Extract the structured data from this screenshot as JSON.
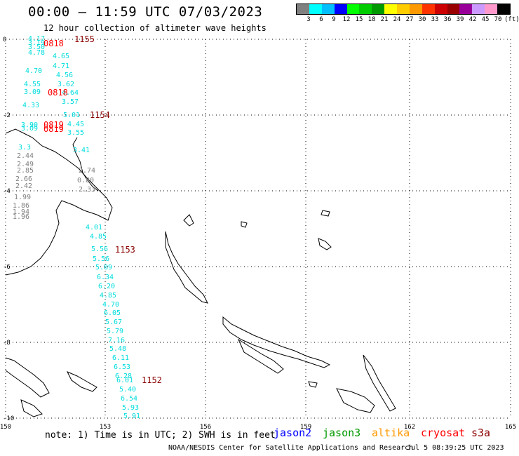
{
  "header": {
    "title": "00:00 — 11:59 UTC 07/03/2023",
    "subtitle": "12 hour collection of altimeter wave heights"
  },
  "color_scale": {
    "labels": [
      "3",
      "6",
      "9",
      "12",
      "15",
      "18",
      "21",
      "24",
      "27",
      "30",
      "33",
      "36",
      "39",
      "42",
      "45",
      "70"
    ],
    "unit": "(ft)",
    "colors": [
      "#808080",
      "#00ffff",
      "#00bfff",
      "#0000ff",
      "#00ff00",
      "#00cc00",
      "#009900",
      "#ffff00",
      "#ffcc00",
      "#ff9900",
      "#ff3300",
      "#cc0000",
      "#990000",
      "#990099",
      "#cc99ff",
      "#ff99cc",
      "#000000"
    ]
  },
  "axes": {
    "x_ticks": [
      "150",
      "153",
      "156",
      "159",
      "162",
      "165"
    ],
    "y_ticks": [
      "0",
      "-2",
      "-4",
      "-6",
      "-8",
      "-10"
    ]
  },
  "passes": [
    {
      "label": "1155",
      "color": "#8b0000"
    },
    {
      "label": "0818",
      "color": "#ff0000"
    },
    {
      "label": "0818",
      "color": "#ff0000"
    },
    {
      "label": "1154",
      "color": "#8b0000"
    },
    {
      "label": "0819",
      "color": "#ff0000"
    },
    {
      "label": "0819",
      "color": "#ff0000"
    },
    {
      "label": "1153",
      "color": "#8b0000"
    },
    {
      "label": "1152",
      "color": "#8b0000"
    }
  ],
  "readings": [
    {
      "v": "4.17",
      "c": "#00dddd"
    },
    {
      "v": "3.19",
      "c": "#00dddd"
    },
    {
      "v": "3.50",
      "c": "#00dddd"
    },
    {
      "v": "4.78",
      "c": "#00dddd"
    },
    {
      "v": "4.65",
      "c": "#00dddd"
    },
    {
      "v": "4.71",
      "c": "#00dddd"
    },
    {
      "v": "4.70",
      "c": "#00dddd"
    },
    {
      "v": "4.56",
      "c": "#00dddd"
    },
    {
      "v": "4.55",
      "c": "#00dddd"
    },
    {
      "v": "3.62",
      "c": "#00dddd"
    },
    {
      "v": "3.09",
      "c": "#00dddd"
    },
    {
      "v": "4.64",
      "c": "#00dddd"
    },
    {
      "v": "3.57",
      "c": "#00dddd"
    },
    {
      "v": "4.33",
      "c": "#00dddd"
    },
    {
      "v": "5.01",
      "c": "#00dddd"
    },
    {
      "v": "4.45",
      "c": "#00dddd"
    },
    {
      "v": "3.90",
      "c": "#00dddd"
    },
    {
      "v": "3.55",
      "c": "#00dddd"
    },
    {
      "v": "3.09",
      "c": "#00dddd"
    },
    {
      "v": "3.3",
      "c": "#00dddd"
    },
    {
      "v": "3.41",
      "c": "#00dddd"
    },
    {
      "v": "2.44",
      "c": "#808080"
    },
    {
      "v": "2.49",
      "c": "#808080"
    },
    {
      "v": "2.85",
      "c": "#808080"
    },
    {
      "v": "2.74",
      "c": "#808080"
    },
    {
      "v": "2.66",
      "c": "#808080"
    },
    {
      "v": "0.80",
      "c": "#808080"
    },
    {
      "v": "2.42",
      "c": "#808080"
    },
    {
      "v": "2.33",
      "c": "#808080"
    },
    {
      "v": "1.99",
      "c": "#808080"
    },
    {
      "v": "1.86",
      "c": "#808080"
    },
    {
      "v": "1.94",
      "c": "#808080"
    },
    {
      "v": "1.96",
      "c": "#808080"
    },
    {
      "v": "4.01",
      "c": "#00dddd"
    },
    {
      "v": "4.85",
      "c": "#00dddd"
    },
    {
      "v": "5.56",
      "c": "#00dddd"
    },
    {
      "v": "5.56",
      "c": "#00dddd"
    },
    {
      "v": "5.89",
      "c": "#00dddd"
    },
    {
      "v": "6.34",
      "c": "#00dddd"
    },
    {
      "v": "6.20",
      "c": "#00dddd"
    },
    {
      "v": "4.85",
      "c": "#00dddd"
    },
    {
      "v": "4.70",
      "c": "#00dddd"
    },
    {
      "v": "6.05",
      "c": "#00dddd"
    },
    {
      "v": "5.67",
      "c": "#00dddd"
    },
    {
      "v": "5.79",
      "c": "#00dddd"
    },
    {
      "v": "7.16",
      "c": "#00dddd"
    },
    {
      "v": "5.48",
      "c": "#00dddd"
    },
    {
      "v": "6.11",
      "c": "#00dddd"
    },
    {
      "v": "6.53",
      "c": "#00dddd"
    },
    {
      "v": "6.28",
      "c": "#00dddd"
    },
    {
      "v": "6.01",
      "c": "#00dddd"
    },
    {
      "v": "5.40",
      "c": "#00dddd"
    },
    {
      "v": "6.54",
      "c": "#00dddd"
    },
    {
      "v": "5.93",
      "c": "#00dddd"
    },
    {
      "v": "5.91",
      "c": "#00dddd"
    }
  ],
  "footer": {
    "note": "note: 1) Time is in UTC; 2) SWH is in feet",
    "satellites": [
      {
        "name": "jason2",
        "color": "#0000ff"
      },
      {
        "name": "jason3",
        "color": "#009900"
      },
      {
        "name": "altika",
        "color": "#ff9900"
      },
      {
        "name": "cryosat",
        "color": "#ff0000"
      },
      {
        "name": "s3a",
        "color": "#8b0000"
      }
    ],
    "credit": "NOAA/NESDIS Center for Satellite Applications and Research",
    "generated": "Jul  5 08:39:25 UTC 2023"
  }
}
